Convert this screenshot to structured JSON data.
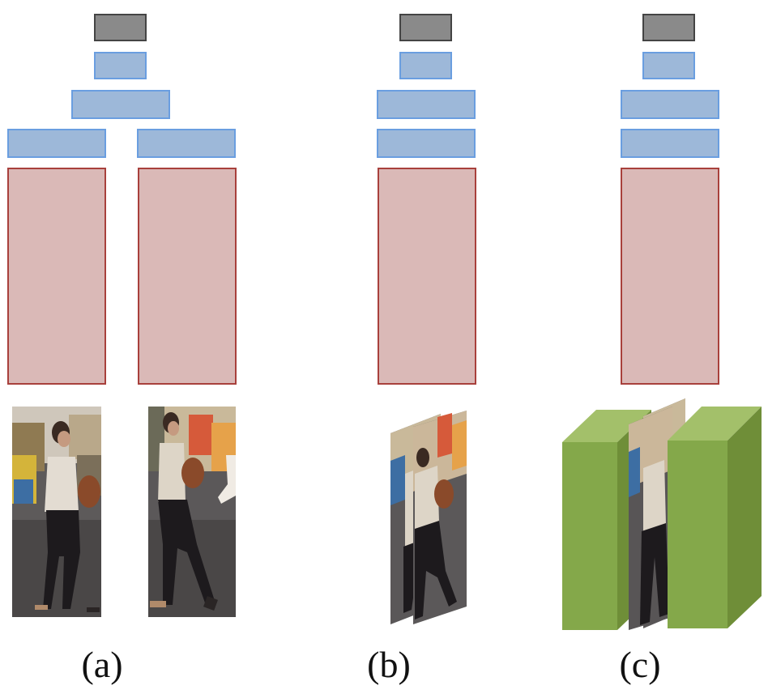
{
  "captions": {
    "a": "(a)",
    "b": "(b)",
    "c": "(c)"
  },
  "colors": {
    "output_block": "#8a8a8a",
    "fc_block": "#9db8d9",
    "fc_border": "#6a9ee0",
    "cnn_block": "#dab9b7",
    "cnn_border": "#a8403c",
    "volume_block": "#84a84a"
  }
}
